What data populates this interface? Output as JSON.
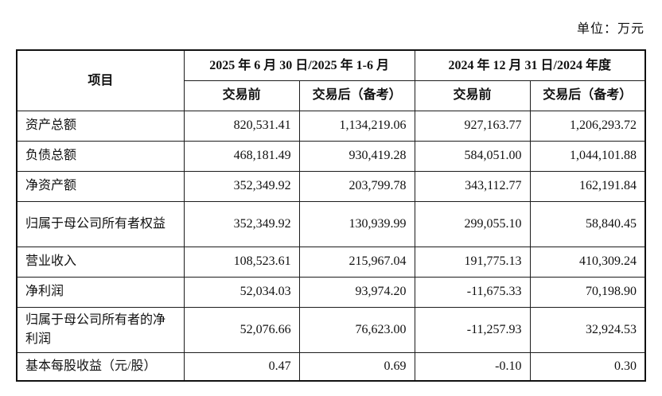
{
  "page": {
    "unit_label": "单位：万元"
  },
  "table": {
    "header": {
      "item_col": "项目",
      "period_groups": [
        {
          "label": "2025 年 6 月 30 日/2025 年 1-6 月"
        },
        {
          "label": "2024 年 12 月 31 日/2024 年度"
        }
      ],
      "sub_cols": [
        {
          "label": "交易前"
        },
        {
          "label": "交易后（备考）"
        },
        {
          "label": "交易前"
        },
        {
          "label": "交易后（备考）"
        }
      ]
    },
    "rows": [
      {
        "label": "资产总额",
        "values": [
          "820,531.41",
          "1,134,219.06",
          "927,163.77",
          "1,206,293.72"
        ]
      },
      {
        "label": "负债总额",
        "values": [
          "468,181.49",
          "930,419.28",
          "584,051.00",
          "1,044,101.88"
        ]
      },
      {
        "label": "净资产额",
        "values": [
          "352,349.92",
          "203,799.78",
          "343,112.77",
          "162,191.84"
        ]
      },
      {
        "label": "归属于母公司所有者权益",
        "values": [
          "352,349.92",
          "130,939.99",
          "299,055.10",
          "58,840.45"
        ]
      },
      {
        "label": "营业收入",
        "values": [
          "108,523.61",
          "215,967.04",
          "191,775.13",
          "410,309.24"
        ]
      },
      {
        "label": "净利润",
        "values": [
          "52,034.03",
          "93,974.20",
          "-11,675.33",
          "70,198.90"
        ]
      },
      {
        "label": "归属于母公司所有者的净利润",
        "values": [
          "52,076.66",
          "76,623.00",
          "-11,257.93",
          "32,924.53"
        ]
      },
      {
        "label": "基本每股收益（元/股）",
        "values": [
          "0.47",
          "0.69",
          "-0.10",
          "0.30"
        ]
      }
    ]
  }
}
